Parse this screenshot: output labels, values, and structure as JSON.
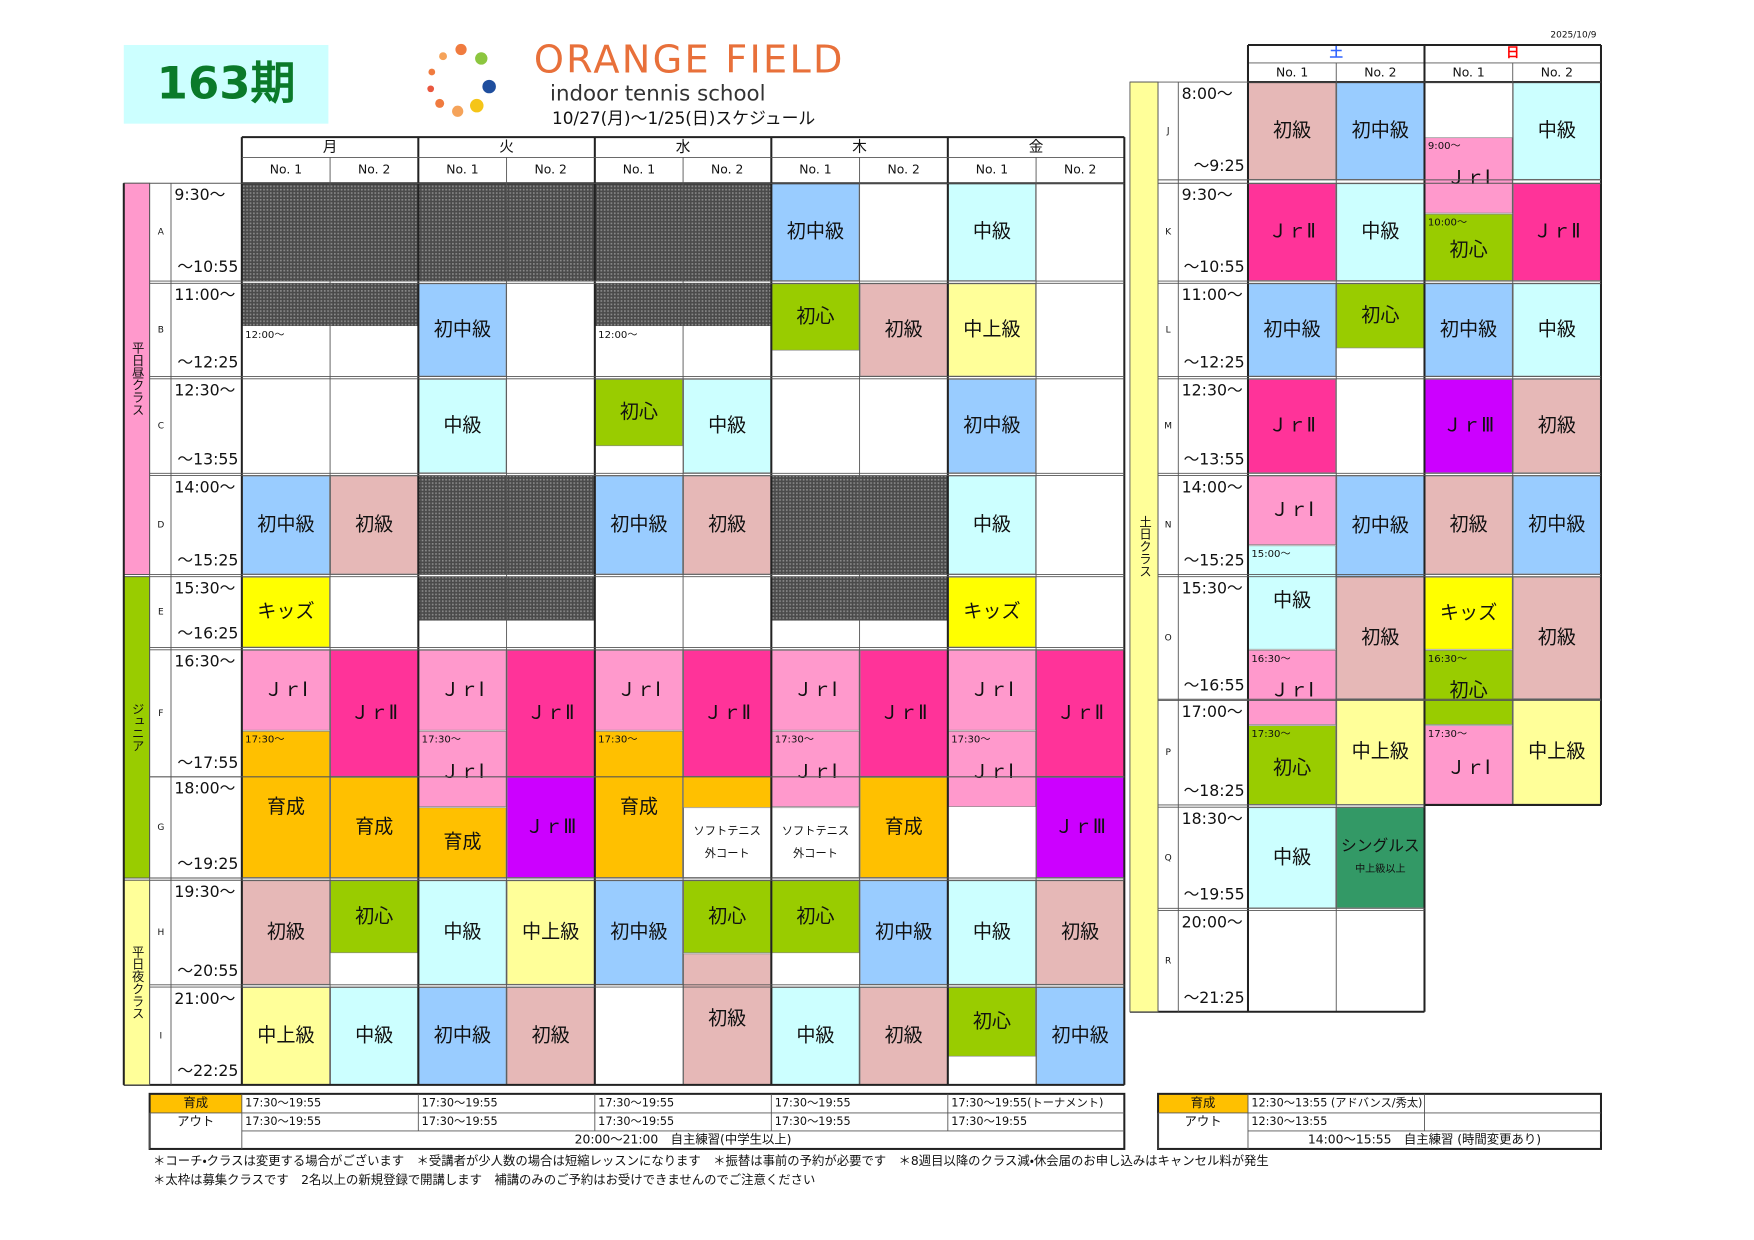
{
  "term": "163期",
  "brand": "ORANGE FIELD",
  "tagline": "indoor tennis school",
  "schedule_period": "10/27(月)〜1/25(日)スケジュール",
  "date": "2025/10/9",
  "class_colors": {
    "初級": "#e6b8b7",
    "初中級": "#99ccff",
    "中級": "#ccffff",
    "中上級": "#ffff99",
    "初心": "#99cc00",
    "キッズ": "#ffff00",
    "ＪｒⅠ": "#ff99cc",
    "ＪｒⅡ": "#ff3399",
    "ＪｒⅢ": "#cc00ff",
    "育成": "#ffc000",
    "シングルス": "#339966",
    "ソフトテニス": "#ffffff"
  },
  "weekday": {
    "days": [
      "月",
      "火",
      "水",
      "木",
      "金"
    ],
    "courts": [
      "No. 1",
      "No. 2"
    ],
    "groups": [
      {
        "label": "平日昼クラス",
        "color": "#ff99cc"
      },
      {
        "label": "ジュニア",
        "color": "#99cc00"
      },
      {
        "label": "平日夜クラス",
        "color": "#ffff99"
      }
    ],
    "periods": [
      {
        "letter": "A",
        "start": "9:30〜",
        "end": "〜10:55"
      },
      {
        "letter": "B",
        "start": "11:00〜",
        "end": "〜12:25"
      },
      {
        "letter": "C",
        "start": "12:30〜",
        "end": "〜13:55"
      },
      {
        "letter": "D",
        "start": "14:00〜",
        "end": "〜15:25"
      },
      {
        "letter": "E",
        "start": "15:30〜",
        "end": "〜16:25"
      },
      {
        "letter": "F",
        "start": "16:30〜",
        "end": "〜17:55"
      },
      {
        "letter": "G",
        "start": "18:00〜",
        "end": "〜19:25"
      },
      {
        "letter": "H",
        "start": "19:30〜",
        "end": "〜20:55"
      },
      {
        "letter": "I",
        "start": "21:00〜",
        "end": "〜22:25"
      }
    ],
    "cells": [
      {
        "label": "初中級"
      },
      {
        "label": "中級"
      },
      {
        "note": "12:00〜"
      },
      {
        "label": "初中級"
      },
      {
        "note": "12:00〜"
      },
      {
        "label": "初心"
      },
      {
        "label": "初級"
      },
      {
        "label": "中上級"
      },
      {
        "label": "中級"
      },
      {
        "label": "初心"
      },
      {
        "label": "中級"
      },
      {
        "label": "初中級"
      },
      {
        "label": "初中級"
      },
      {
        "label": "初級"
      },
      {
        "label": "初中級"
      },
      {
        "label": "初級"
      },
      {
        "label": "中級"
      },
      {
        "label": "キッズ"
      },
      {
        "label": "キッズ"
      },
      {
        "label": "ＪｒⅠ"
      },
      {
        "label": "育成",
        "note": "17:30〜"
      },
      {
        "label": "ＪｒⅡ"
      },
      {
        "label": "育成"
      },
      {
        "label": "ＪｒⅠ"
      },
      {
        "label": "ＪｒⅠ",
        "note": "17:30〜"
      },
      {
        "label": "育成"
      },
      {
        "label": "ＪｒⅡ"
      },
      {
        "label": "ＪｒⅢ"
      },
      {
        "label": "ＪｒⅠ"
      },
      {
        "label": "育成",
        "note": "17:30〜"
      },
      {
        "label": "ＪｒⅡ"
      },
      {
        "label": "ソフトテニス",
        "sub": "外コート"
      },
      {
        "label": "ＪｒⅠ"
      },
      {
        "label": "ＪｒⅠ",
        "note": "17:30〜"
      },
      {
        "label": "ソフトテニス",
        "sub": "外コート"
      },
      {
        "label": "ＪｒⅡ"
      },
      {
        "label": "育成"
      },
      {
        "label": "ＪｒⅠ"
      },
      {
        "label": "ＪｒⅠ",
        "note": "17:30〜"
      },
      {
        "label": "ＪｒⅡ"
      },
      {
        "label": "ＪｒⅢ"
      },
      {
        "label": "初級"
      },
      {
        "label": "初心"
      },
      {
        "label": "中級"
      },
      {
        "label": "中上級"
      },
      {
        "label": "初中級"
      },
      {
        "label": "初心"
      },
      {
        "label": "初級"
      },
      {
        "label": "初心"
      },
      {
        "label": "初中級"
      },
      {
        "label": "中級"
      },
      {
        "label": "初級"
      },
      {
        "label": "中上級"
      },
      {
        "label": "中級"
      },
      {
        "label": "初中級"
      },
      {
        "label": "初級"
      },
      {
        "label": "中級"
      },
      {
        "label": "初級"
      },
      {
        "label": "初心"
      },
      {
        "label": "初中級"
      }
    ]
  },
  "weekend": {
    "days": [
      "土",
      "日"
    ],
    "day_colors": [
      "#3366ff",
      "#ff0000"
    ],
    "courts": [
      "No. 1",
      "No. 2"
    ],
    "group": {
      "label": "土日クラス",
      "color": "#ffff99"
    },
    "periods": [
      {
        "letter": "J",
        "start": "8:00〜",
        "end": "〜9:25"
      },
      {
        "letter": "K",
        "start": "9:30〜",
        "end": "〜10:55"
      },
      {
        "letter": "L",
        "start": "11:00〜",
        "end": "〜12:25"
      },
      {
        "letter": "M",
        "start": "12:30〜",
        "end": "〜13:55"
      },
      {
        "letter": "N",
        "start": "14:00〜",
        "end": "〜15:25"
      },
      {
        "letter": "O",
        "start": "15:30〜",
        "end": "〜16:55"
      },
      {
        "letter": "P",
        "start": "17:00〜",
        "end": "〜18:25"
      },
      {
        "letter": "Q",
        "start": "18:30〜",
        "end": "〜19:55"
      },
      {
        "letter": "R",
        "start": "20:00〜",
        "end": "〜21:25"
      }
    ],
    "cells": [
      {
        "label": "初級"
      },
      {
        "label": "初中級"
      },
      {
        "label": "ＪｒⅠ",
        "note": "9:00〜"
      },
      {
        "label": "中級"
      },
      {
        "label": "ＪｒⅡ"
      },
      {
        "label": "中級"
      },
      {
        "label": "初心",
        "note": "10:00〜"
      },
      {
        "label": "ＪｒⅡ"
      },
      {
        "label": "初中級"
      },
      {
        "label": "初心"
      },
      {
        "label": "初中級"
      },
      {
        "label": "中級"
      },
      {
        "label": "ＪｒⅡ"
      },
      {
        "label": "ＪｒⅢ"
      },
      {
        "label": "初級"
      },
      {
        "label": "ＪｒⅠ"
      },
      {
        "label": "初中級"
      },
      {
        "label": "初級"
      },
      {
        "label": "初中級"
      },
      {
        "label": "中級",
        "note": "15:00〜"
      },
      {
        "label": "初級"
      },
      {
        "label": "キッズ"
      },
      {
        "label": "初級"
      },
      {
        "label": "ＪｒⅠ",
        "note": "16:30〜"
      },
      {
        "label": "初心",
        "note": "16:30〜"
      },
      {
        "label": "初心",
        "note": "17:30〜"
      },
      {
        "label": "中上級"
      },
      {
        "label": "ＪｒⅠ",
        "note": "17:30〜"
      },
      {
        "label": "中上級"
      },
      {
        "label": "中級"
      },
      {
        "label": "シングルス",
        "sub": "中上級以上"
      }
    ]
  },
  "weekday_footer": {
    "rows": [
      {
        "label": "育成",
        "values": [
          "17:30〜19:55",
          "17:30〜19:55",
          "17:30〜19:55",
          "17:30〜19:55",
          "17:30〜19:55(トーナメント)"
        ]
      },
      {
        "label": "アウト",
        "values": [
          "17:30〜19:55",
          "17:30〜19:55",
          "17:30〜19:55",
          "17:30〜19:55",
          "17:30〜19:55"
        ]
      }
    ],
    "note": "20:00〜21:00　自主練習(中学生以上)"
  },
  "weekend_footer": {
    "rows": [
      {
        "label": "育成",
        "values": [
          "12:30〜13:55 (アドバンス/秀太)"
        ]
      },
      {
        "label": "アウト",
        "values": [
          "12:30〜13:55"
        ]
      }
    ],
    "note": "14:00〜15:55　自主練習 (時間変更あり)"
  },
  "notes": [
    "＊コーチ・クラスは変更する場合がございます　＊受講者が少人数の場合は短縮レッスンになります　＊振替は事前の予約が必要です　＊8週目以降のクラス減・休会届のお申し込みはキャンセル料が発生",
    "＊太枠は募集クラスです　2名以上の新規登録で開講します　補講のみのご予約はお受けできませんのでご注意ください"
  ]
}
